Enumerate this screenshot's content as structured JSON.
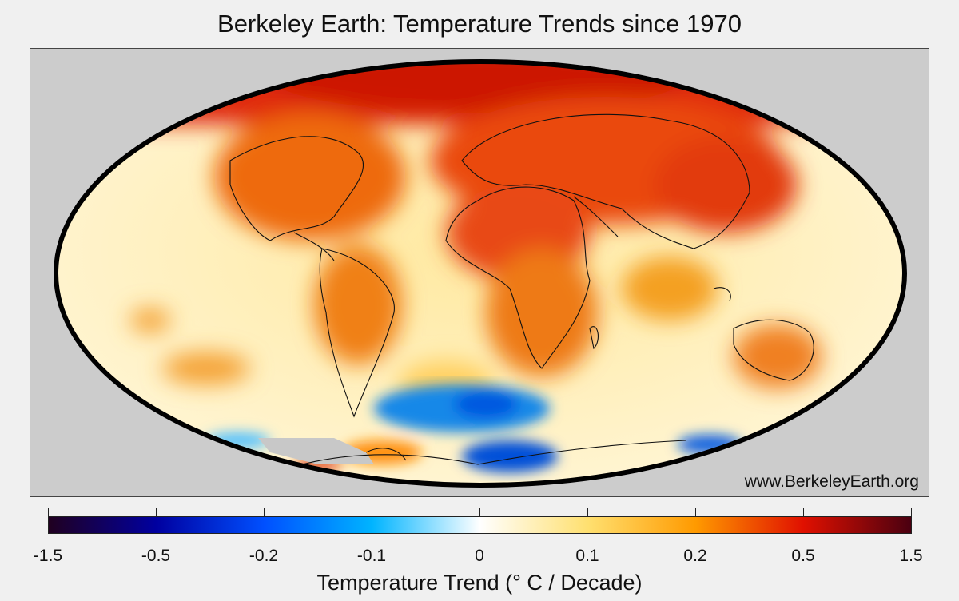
{
  "title": "Berkeley Earth: Temperature Trends since 1970",
  "credit": "www.BerkeleyEarth.org",
  "map": {
    "projection": "mollweide",
    "background_color": "#cccccc",
    "outline_color": "#000000"
  },
  "colorbar": {
    "label": "Temperature Trend (° C / Decade)",
    "ticks": [
      "-1.5",
      "-0.5",
      "-0.2",
      "-0.1",
      "0",
      "0.1",
      "0.2",
      "0.5",
      "1.5"
    ],
    "colors": [
      "#200020",
      "#0000a0",
      "#0050ff",
      "#00b4ff",
      "#ffffff",
      "#ffe070",
      "#ff9a00",
      "#e01000",
      "#4a0010"
    ]
  }
}
